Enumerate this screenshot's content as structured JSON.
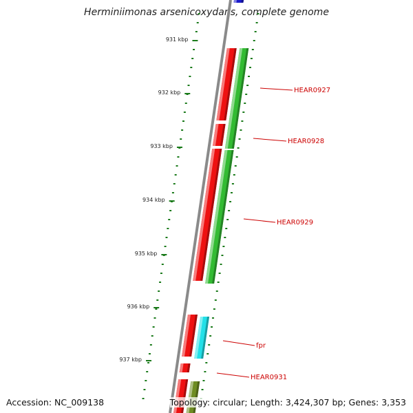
{
  "title": "Herminiimonas arsenicoxydans, complete genome",
  "footer": {
    "accession": "Accession: NC_009138",
    "topology": "Topology: circular; Length: 3,424,307 bp; Genes: 3,353"
  },
  "colors": {
    "backbone": "#8a8a8a",
    "tick": "#1a7a1a",
    "label": "#cc0000",
    "red": "#ee1111",
    "green": "#33bb33",
    "cyan": "#22e0e8",
    "olive": "#6e8c22",
    "blue": "#1a1acc"
  },
  "axis": {
    "labels": [
      "931 kbp",
      "932 kbp",
      "933 kbp",
      "934 kbp",
      "935 kbp",
      "936 kbp",
      "937 kbp"
    ]
  },
  "gene_labels": [
    "HEAR0927",
    "HEAR0928",
    "HEAR0929",
    "fpr",
    "HEAR0931"
  ],
  "features": [
    {
      "color": "blue",
      "lane": 0,
      "start": 0,
      "end": 4
    },
    {
      "color": "red",
      "lane": 0,
      "start": 70,
      "end": 175
    },
    {
      "color": "red",
      "lane": 0,
      "start": 180,
      "end": 212
    },
    {
      "color": "red",
      "lane": 0,
      "start": 216,
      "end": 408
    },
    {
      "color": "green",
      "lane": 1,
      "start": 70,
      "end": 216
    },
    {
      "color": "green",
      "lane": 1,
      "start": 218,
      "end": 412
    },
    {
      "color": "red",
      "lane": 0,
      "start": 457,
      "end": 518
    },
    {
      "color": "cyan",
      "lane": 1,
      "start": 460,
      "end": 521
    },
    {
      "color": "red",
      "lane": 0,
      "start": 528,
      "end": 541
    },
    {
      "color": "red",
      "lane": 0,
      "start": 551,
      "end": 600
    },
    {
      "color": "olive",
      "lane": 1,
      "start": 554,
      "end": 600
    }
  ]
}
